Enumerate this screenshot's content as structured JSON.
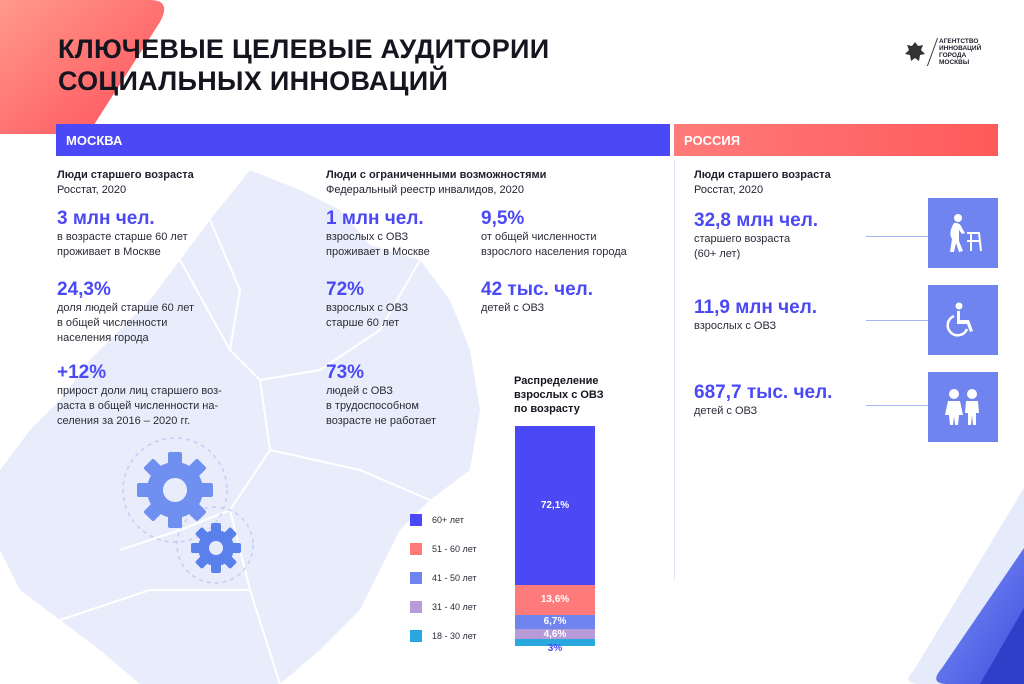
{
  "title": {
    "line1": "КЛЮЧЕВЫЕ ЦЕЛЕВЫЕ АУДИТОРИИ",
    "line2": "СОЦИАЛЬНЫХ ИННОВАЦИЙ"
  },
  "logo": {
    "l1": "АГЕНТСТВО",
    "l2": "ИННОВАЦИЙ",
    "l3": "ГОРОДА",
    "l4": "МОСКВЫ"
  },
  "moscow": {
    "label": "МОСКВА",
    "elderly": {
      "heading": "Люди старшего возраста",
      "source": "Росстат, 2020",
      "stats": [
        {
          "value": "3 млн чел.",
          "desc1": "в возрасте старше 60 лет",
          "desc2": "проживает в Москве",
          "desc3": ""
        },
        {
          "value": "24,3%",
          "desc1": "доля людей старше 60 лет",
          "desc2": "в общей численности",
          "desc3": "населения города"
        },
        {
          "value": "+12%",
          "desc1": "прирост доли лиц старшего воз-",
          "desc2": "раста в общей численности на-",
          "desc3": "селения за 2016 – 2020 гг."
        }
      ]
    },
    "disabled": {
      "heading": "Люди с ограниченными возможностями",
      "source": "Федеральный реестр инвалидов, 2020",
      "stats": [
        {
          "value": "1 млн чел.",
          "desc1": "взрослых с ОВЗ",
          "desc2": "проживает в Москве",
          "desc3": ""
        },
        {
          "value": "9,5%",
          "desc1": "от общей численности",
          "desc2": "взрослого населения города",
          "desc3": ""
        },
        {
          "value": "72%",
          "desc1": "взрослых с ОВЗ",
          "desc2": "старше 60 лет",
          "desc3": ""
        },
        {
          "value": "42 тыс. чел.",
          "desc1": "детей с ОВЗ",
          "desc2": "",
          "desc3": ""
        },
        {
          "value": "73%",
          "desc1": "людей с ОВЗ",
          "desc2": "в трудоспособном",
          "desc3": "возрасте не работает"
        }
      ]
    }
  },
  "russia": {
    "label": "РОССИЯ",
    "heading": "Люди старшего возраста",
    "source": "Росстат, 2020",
    "stats": [
      {
        "value": "32,8 млн чел.",
        "desc1": "старшего возраста",
        "desc2": "(60+ лет)",
        "icon": "elderly-person-icon"
      },
      {
        "value": "11,9 млн чел.",
        "desc1": "взрослых с ОВЗ",
        "desc2": "",
        "icon": "wheelchair-icon"
      },
      {
        "value": "687,7 тыс. чел.",
        "desc1": "детей с ОВЗ",
        "desc2": "",
        "icon": "children-icon"
      }
    ]
  },
  "chart_data": {
    "type": "bar",
    "stacked": true,
    "title": "Распределение взрослых с ОВЗ по возрасту",
    "title_lines": [
      "Распределение",
      "взрослых с ОВЗ",
      "по возрасту"
    ],
    "categories": [
      "60+ лет",
      "51 - 60 лет",
      "41 - 50 лет",
      "31 - 40 лет",
      "18 - 30 лет"
    ],
    "values": [
      72.1,
      13.6,
      6.7,
      4.6,
      3
    ],
    "labels": [
      "72,1%",
      "13,6%",
      "6,7%",
      "4,6%",
      "3%"
    ],
    "colors": [
      "#4a49f5",
      "#ff7b7b",
      "#6f84ee",
      "#b79ad8",
      "#29a8e0"
    ],
    "legend_position": "left"
  }
}
